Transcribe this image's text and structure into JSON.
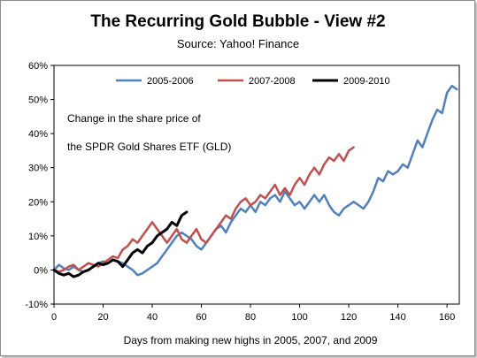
{
  "chart_data": {
    "type": "line",
    "title": "The Recurring Gold Bubble - View #2",
    "subtitle": "Source: Yahoo! Finance",
    "xlabel": "Days from making new highs in 2005, 2007, and 2009",
    "ylabel": "",
    "xlim": [
      0,
      165
    ],
    "ylim": [
      -0.1,
      0.6
    ],
    "x_ticks": [
      0,
      20,
      40,
      60,
      80,
      100,
      120,
      140,
      160
    ],
    "y_ticks": [
      -0.1,
      0.0,
      0.1,
      0.2,
      0.3,
      0.4,
      0.5,
      0.6
    ],
    "y_tick_labels": [
      "-10%",
      "0%",
      "10%",
      "20%",
      "30%",
      "40%",
      "50%",
      "60%"
    ],
    "grid": false,
    "legend_position": "top",
    "annotation": [
      "Change in the share price of",
      "the SPDR Gold Shares ETF (GLD)"
    ],
    "series": [
      {
        "name": "2005-2006",
        "color": "#4f81bd",
        "points": [
          [
            0,
            0.0
          ],
          [
            2,
            0.015
          ],
          [
            4,
            0.005
          ],
          [
            6,
            0.0
          ],
          [
            8,
            0.01
          ],
          [
            10,
            0.0
          ],
          [
            12,
            -0.005
          ],
          [
            14,
            0.0
          ],
          [
            16,
            0.01
          ],
          [
            18,
            0.02
          ],
          [
            20,
            0.025
          ],
          [
            22,
            0.02
          ],
          [
            24,
            0.03
          ],
          [
            26,
            0.025
          ],
          [
            28,
            0.02
          ],
          [
            30,
            0.01
          ],
          [
            32,
            0.0
          ],
          [
            34,
            -0.015
          ],
          [
            36,
            -0.01
          ],
          [
            38,
            0.0
          ],
          [
            40,
            0.01
          ],
          [
            42,
            0.02
          ],
          [
            44,
            0.04
          ],
          [
            46,
            0.06
          ],
          [
            48,
            0.08
          ],
          [
            50,
            0.1
          ],
          [
            52,
            0.11
          ],
          [
            54,
            0.1
          ],
          [
            56,
            0.09
          ],
          [
            58,
            0.07
          ],
          [
            60,
            0.06
          ],
          [
            62,
            0.08
          ],
          [
            64,
            0.1
          ],
          [
            66,
            0.12
          ],
          [
            68,
            0.13
          ],
          [
            70,
            0.11
          ],
          [
            72,
            0.14
          ],
          [
            74,
            0.16
          ],
          [
            76,
            0.18
          ],
          [
            78,
            0.17
          ],
          [
            80,
            0.19
          ],
          [
            82,
            0.17
          ],
          [
            84,
            0.2
          ],
          [
            86,
            0.19
          ],
          [
            88,
            0.21
          ],
          [
            90,
            0.22
          ],
          [
            92,
            0.2
          ],
          [
            94,
            0.23
          ],
          [
            96,
            0.21
          ],
          [
            98,
            0.19
          ],
          [
            100,
            0.2
          ],
          [
            102,
            0.18
          ],
          [
            104,
            0.2
          ],
          [
            106,
            0.22
          ],
          [
            108,
            0.2
          ],
          [
            110,
            0.22
          ],
          [
            112,
            0.19
          ],
          [
            114,
            0.17
          ],
          [
            116,
            0.16
          ],
          [
            118,
            0.18
          ],
          [
            120,
            0.19
          ],
          [
            122,
            0.2
          ],
          [
            124,
            0.19
          ],
          [
            126,
            0.18
          ],
          [
            128,
            0.2
          ],
          [
            130,
            0.23
          ],
          [
            132,
            0.27
          ],
          [
            134,
            0.26
          ],
          [
            136,
            0.29
          ],
          [
            138,
            0.28
          ],
          [
            140,
            0.29
          ],
          [
            142,
            0.31
          ],
          [
            144,
            0.3
          ],
          [
            146,
            0.34
          ],
          [
            148,
            0.38
          ],
          [
            150,
            0.36
          ],
          [
            152,
            0.4
          ],
          [
            154,
            0.44
          ],
          [
            156,
            0.47
          ],
          [
            158,
            0.46
          ],
          [
            160,
            0.52
          ],
          [
            162,
            0.54
          ],
          [
            164,
            0.53
          ]
        ]
      },
      {
        "name": "2007-2008",
        "color": "#c0504d",
        "points": [
          [
            0,
            0.0
          ],
          [
            2,
            -0.005
          ],
          [
            4,
            0.0
          ],
          [
            6,
            0.01
          ],
          [
            8,
            0.015
          ],
          [
            10,
            0.0
          ],
          [
            12,
            0.01
          ],
          [
            14,
            0.02
          ],
          [
            16,
            0.015
          ],
          [
            18,
            0.01
          ],
          [
            20,
            0.02
          ],
          [
            22,
            0.03
          ],
          [
            24,
            0.04
          ],
          [
            26,
            0.035
          ],
          [
            28,
            0.06
          ],
          [
            30,
            0.07
          ],
          [
            32,
            0.09
          ],
          [
            34,
            0.08
          ],
          [
            36,
            0.1
          ],
          [
            38,
            0.12
          ],
          [
            40,
            0.14
          ],
          [
            42,
            0.12
          ],
          [
            44,
            0.1
          ],
          [
            46,
            0.08
          ],
          [
            48,
            0.1
          ],
          [
            50,
            0.12
          ],
          [
            52,
            0.09
          ],
          [
            54,
            0.08
          ],
          [
            56,
            0.1
          ],
          [
            58,
            0.12
          ],
          [
            60,
            0.09
          ],
          [
            62,
            0.08
          ],
          [
            64,
            0.1
          ],
          [
            66,
            0.12
          ],
          [
            68,
            0.14
          ],
          [
            70,
            0.16
          ],
          [
            72,
            0.15
          ],
          [
            74,
            0.18
          ],
          [
            76,
            0.2
          ],
          [
            78,
            0.21
          ],
          [
            80,
            0.19
          ],
          [
            82,
            0.2
          ],
          [
            84,
            0.22
          ],
          [
            86,
            0.21
          ],
          [
            88,
            0.23
          ],
          [
            90,
            0.25
          ],
          [
            92,
            0.22
          ],
          [
            94,
            0.24
          ],
          [
            96,
            0.22
          ],
          [
            98,
            0.25
          ],
          [
            100,
            0.27
          ],
          [
            102,
            0.25
          ],
          [
            104,
            0.28
          ],
          [
            106,
            0.3
          ],
          [
            108,
            0.28
          ],
          [
            110,
            0.31
          ],
          [
            112,
            0.33
          ],
          [
            114,
            0.32
          ],
          [
            116,
            0.34
          ],
          [
            118,
            0.32
          ],
          [
            120,
            0.35
          ],
          [
            122,
            0.36
          ]
        ]
      },
      {
        "name": "2009-2010",
        "color": "#000000",
        "points": [
          [
            0,
            0.0
          ],
          [
            2,
            -0.01
          ],
          [
            4,
            -0.015
          ],
          [
            6,
            -0.01
          ],
          [
            8,
            -0.02
          ],
          [
            10,
            -0.015
          ],
          [
            12,
            -0.005
          ],
          [
            14,
            0.0
          ],
          [
            16,
            0.01
          ],
          [
            18,
            0.02
          ],
          [
            20,
            0.015
          ],
          [
            22,
            0.02
          ],
          [
            24,
            0.03
          ],
          [
            26,
            0.025
          ],
          [
            28,
            0.01
          ],
          [
            30,
            0.03
          ],
          [
            32,
            0.05
          ],
          [
            34,
            0.06
          ],
          [
            36,
            0.05
          ],
          [
            38,
            0.07
          ],
          [
            40,
            0.08
          ],
          [
            42,
            0.1
          ],
          [
            44,
            0.11
          ],
          [
            46,
            0.12
          ],
          [
            48,
            0.14
          ],
          [
            50,
            0.13
          ],
          [
            52,
            0.16
          ],
          [
            54,
            0.17
          ]
        ]
      }
    ]
  }
}
